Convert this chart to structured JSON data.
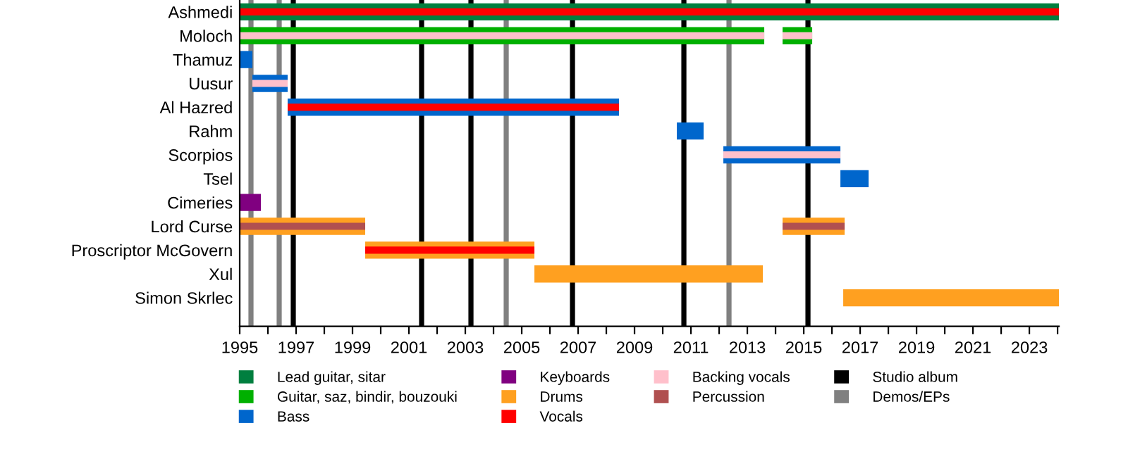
{
  "chart_data": {
    "type": "bar",
    "orientation": "horizontal",
    "categories": [
      "Ashmedi",
      "Moloch",
      "Thamuz",
      "Uusur",
      "Al Hazred",
      "Rahm",
      "Scorpios",
      "Tsel",
      "Cimeries",
      "Lord Curse",
      "Proscriptor McGovern",
      "Xul",
      "Simon Skrlec"
    ],
    "series": [
      {
        "name": "Lead guitar, sitar",
        "color": "#007f3f",
        "base": [
          1995,
          null,
          null,
          null,
          null,
          null,
          null,
          null,
          null,
          null,
          null,
          null,
          null
        ],
        "values": [
          29.05,
          null,
          null,
          null,
          null,
          null,
          null,
          null,
          null,
          null,
          null,
          null,
          null
        ]
      },
      {
        "name": "Guitar, saz, bindir, bouzouki",
        "color": "#00b000",
        "base": [
          null,
          1995,
          null,
          null,
          null,
          null,
          null,
          null,
          null,
          null,
          null,
          null,
          null
        ],
        "values": [
          null,
          18.6,
          null,
          null,
          null,
          null,
          null,
          null,
          null,
          null,
          null,
          null,
          null
        ]
      },
      {
        "name": "Bass",
        "color": "#0066cc",
        "base": [
          null,
          null,
          1995,
          1995.45,
          1996.7,
          2010.5,
          2012.15,
          2016.3,
          null,
          null,
          null,
          null,
          null
        ],
        "values": [
          null,
          null,
          0.45,
          1.25,
          11.75,
          0.95,
          4.15,
          1.0,
          null,
          null,
          null,
          null,
          null
        ]
      },
      {
        "name": "Keyboards",
        "color": "#800080",
        "base": [
          null,
          null,
          null,
          null,
          null,
          null,
          null,
          null,
          1995,
          null,
          null,
          null,
          null
        ],
        "values": [
          null,
          null,
          null,
          null,
          null,
          null,
          null,
          null,
          0.75,
          null,
          null,
          null,
          null
        ]
      },
      {
        "name": "Drums",
        "color": "#ffa020",
        "base": [
          null,
          null,
          null,
          null,
          null,
          null,
          null,
          null,
          null,
          1995,
          1999.45,
          2005.45,
          2016.4
        ],
        "values": [
          null,
          null,
          null,
          null,
          null,
          null,
          null,
          null,
          null,
          4.45,
          6.0,
          8.1,
          7.65
        ]
      },
      {
        "name": "Vocals",
        "color": "#ff0000",
        "base": [
          1995,
          null,
          null,
          null,
          1996.7,
          null,
          null,
          null,
          null,
          null,
          1999.45,
          null,
          null
        ],
        "values": [
          29.05,
          null,
          null,
          null,
          11.75,
          null,
          null,
          null,
          null,
          null,
          6.0,
          null,
          null
        ]
      },
      {
        "name": "Backing vocals",
        "color": "#ffc0cb",
        "base": [
          null,
          1995,
          null,
          1995.45,
          null,
          null,
          2012.15,
          null,
          null,
          null,
          null,
          null,
          null
        ],
        "values": [
          null,
          18.6,
          null,
          1.25,
          null,
          null,
          4.15,
          null,
          null,
          null,
          null,
          null,
          null
        ]
      },
      {
        "name": "Percussion",
        "color": "#b05050",
        "base": [
          null,
          null,
          null,
          null,
          null,
          null,
          null,
          null,
          null,
          1995,
          null,
          null,
          null
        ],
        "values": [
          null,
          null,
          null,
          null,
          null,
          null,
          null,
          null,
          null,
          4.45,
          null,
          null,
          null
        ]
      },
      {
        "color": "#00b000",
        "base": [
          null,
          2014.25,
          null,
          null,
          null,
          null,
          null,
          null,
          null,
          null,
          null,
          null,
          null
        ],
        "values": [
          null,
          1.05,
          null,
          null,
          null,
          null,
          null,
          null,
          null,
          null,
          null,
          null,
          null
        ]
      },
      {
        "color": "#ffc0cb",
        "base": [
          null,
          2014.25,
          null,
          null,
          null,
          null,
          null,
          null,
          null,
          null,
          null,
          null,
          null
        ],
        "values": [
          null,
          1.05,
          null,
          null,
          null,
          null,
          null,
          null,
          null,
          null,
          null,
          null,
          null
        ]
      },
      {
        "color": "#ffa020",
        "base": [
          null,
          null,
          null,
          null,
          null,
          null,
          null,
          null,
          null,
          2014.25,
          null,
          null,
          null
        ],
        "values": [
          null,
          null,
          null,
          null,
          null,
          null,
          null,
          null,
          null,
          2.2,
          null,
          null,
          null
        ]
      },
      {
        "color": "#b05050",
        "base": [
          null,
          null,
          null,
          null,
          null,
          null,
          null,
          null,
          null,
          2014.25,
          null,
          null,
          null
        ],
        "values": [
          null,
          null,
          null,
          null,
          null,
          null,
          null,
          null,
          null,
          2.2,
          null,
          null,
          null
        ]
      }
    ],
    "ref_lines": [
      {
        "axis": "x",
        "value": 1996.9,
        "label": "Studio album",
        "color": "#000000"
      },
      {
        "axis": "x",
        "value": 2001.45,
        "color": "#000000"
      },
      {
        "axis": "x",
        "value": 2003.2,
        "color": "#000000"
      },
      {
        "axis": "x",
        "value": 2006.8,
        "color": "#000000"
      },
      {
        "axis": "x",
        "value": 2010.75,
        "color": "#000000"
      },
      {
        "axis": "x",
        "value": 2015.15,
        "color": "#000000"
      },
      {
        "axis": "x",
        "value": 1995.4,
        "label": "Demos/EPs",
        "color": "#808080"
      },
      {
        "axis": "x",
        "value": 1996.4,
        "color": "#808080"
      },
      {
        "axis": "x",
        "value": 2004.45,
        "color": "#808080"
      },
      {
        "axis": "x",
        "value": 2012.35,
        "color": "#808080"
      }
    ],
    "xlim": [
      1995,
      2024.05
    ],
    "xticks": [
      1995,
      {
        "value": 1996,
        "label": null
      },
      1997,
      {
        "value": 1998,
        "label": null
      },
      1999,
      {
        "value": 2000,
        "label": null
      },
      2001,
      {
        "value": 2002,
        "label": null
      },
      2003,
      {
        "value": 2004,
        "label": null
      },
      2005,
      {
        "value": 2006,
        "label": null
      },
      2007,
      {
        "value": 2008,
        "label": null
      },
      2009,
      {
        "value": 2010,
        "label": null
      },
      2011,
      {
        "value": 2012,
        "label": null
      },
      2013,
      {
        "value": 2014,
        "label": null
      },
      2015,
      {
        "value": 2016,
        "label": null
      },
      2017,
      {
        "value": 2018,
        "label": null
      },
      2019,
      {
        "value": 2020,
        "label": null
      },
      2021,
      {
        "value": 2022,
        "label": null
      },
      2023,
      {
        "value": 2024,
        "label": null
      }
    ],
    "legend": "bottom",
    "grid": false
  }
}
